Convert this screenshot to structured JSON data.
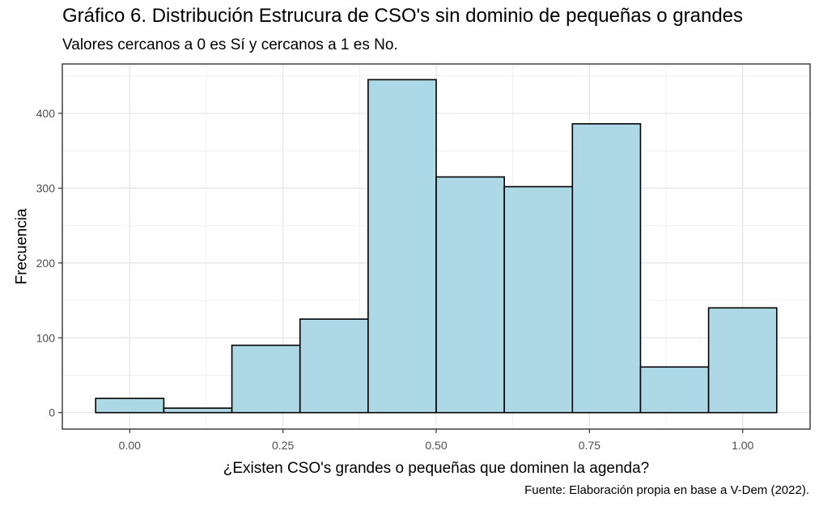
{
  "chart_data": {
    "type": "histogram",
    "title": "Gráfico 6. Distribución Estrucura de CSO's sin dominio de pequeñas o grandes",
    "subtitle": "Valores cercanos a 0 es Sí y cercanos a 1 es No.",
    "caption": "Fuente: Elaboración propia en base a V-Dem (2022).",
    "xlabel": "¿Existen CSO's grandes o pequeñas que dominen la agenda?",
    "ylabel": "Frecuencia",
    "xlim": [
      -0.11,
      1.11
    ],
    "ylim": [
      -22,
      466
    ],
    "xticks": [
      0.0,
      0.25,
      0.5,
      0.75,
      1.0
    ],
    "xtick_labels": [
      "0.00",
      "0.25",
      "0.50",
      "0.75",
      "1.00"
    ],
    "yticks": [
      0,
      100,
      200,
      300,
      400
    ],
    "ytick_labels": [
      "0",
      "100",
      "200",
      "300",
      "400"
    ],
    "fill_color": "#ADD8E6",
    "edge_color": "#000000",
    "grid": true,
    "bins": [
      {
        "x0": -0.0556,
        "x1": 0.0556,
        "count": 19
      },
      {
        "x0": 0.0556,
        "x1": 0.1667,
        "count": 6
      },
      {
        "x0": 0.1667,
        "x1": 0.2778,
        "count": 90
      },
      {
        "x0": 0.2778,
        "x1": 0.3889,
        "count": 125
      },
      {
        "x0": 0.3889,
        "x1": 0.5,
        "count": 445
      },
      {
        "x0": 0.5,
        "x1": 0.6111,
        "count": 315
      },
      {
        "x0": 0.6111,
        "x1": 0.7222,
        "count": 302
      },
      {
        "x0": 0.7222,
        "x1": 0.8333,
        "count": 386
      },
      {
        "x0": 0.8333,
        "x1": 0.9444,
        "count": 61
      },
      {
        "x0": 0.9444,
        "x1": 1.0556,
        "count": 140
      }
    ]
  }
}
